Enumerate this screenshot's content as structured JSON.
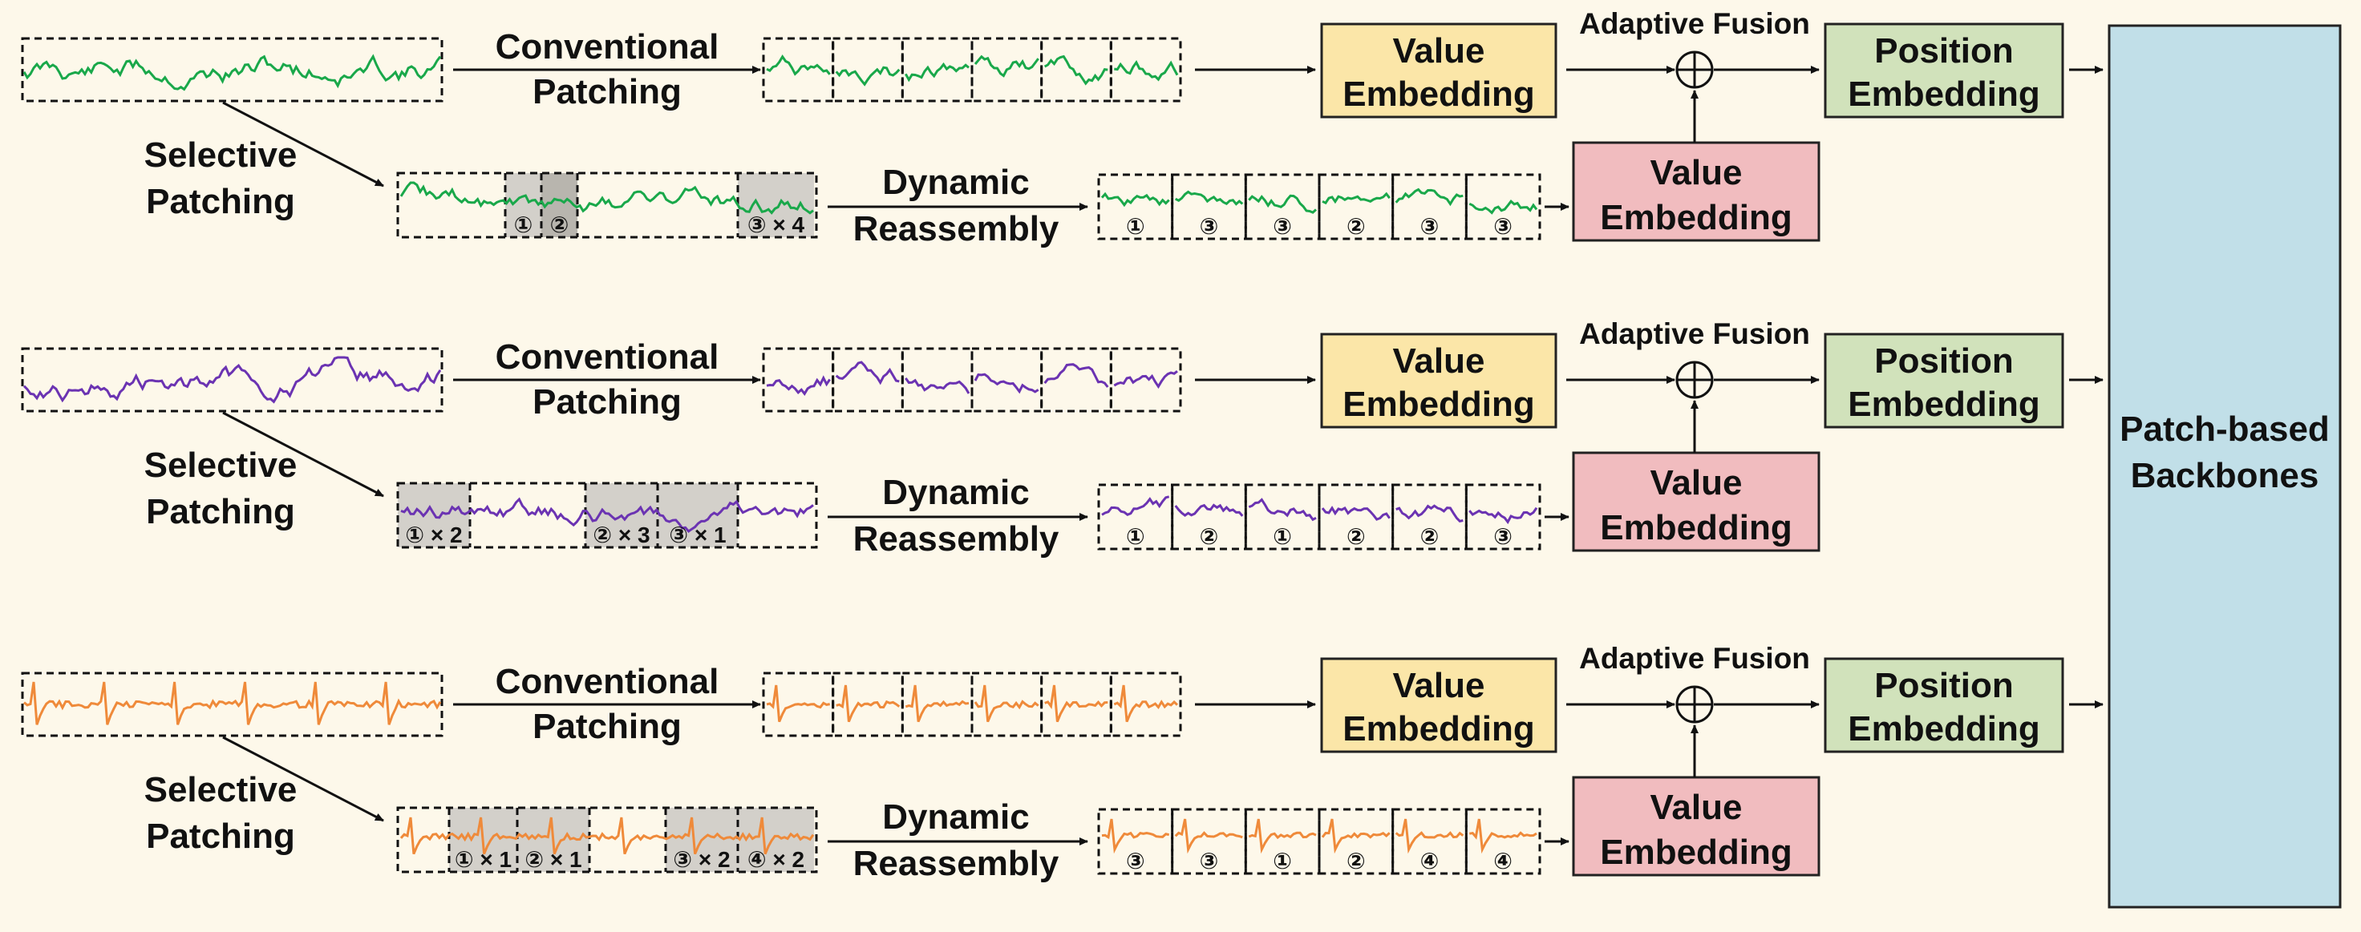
{
  "colors": {
    "background": "#fdf8ea",
    "value_embedding_top": "#fbe6a8",
    "value_embedding_bottom": "#f1bcbf",
    "position_embedding": "#d1e2bb",
    "backbone": "#c1dfe8",
    "selected_patch": "#d3d0ca",
    "selected_patch_dark": "#b8b5ae",
    "series": [
      "#19a84a",
      "#6b33b2",
      "#ef8a3a"
    ]
  },
  "labels": {
    "conventional": [
      "Conventional",
      "Patching"
    ],
    "selective": [
      "Selective",
      "Patching"
    ],
    "dynamic": [
      "Dynamic",
      "Reassembly"
    ],
    "value_embedding": [
      "Value",
      "Embedding"
    ],
    "position_embedding": [
      "Position",
      "Embedding"
    ],
    "adaptive_fusion": "Adaptive Fusion",
    "fusion_symbol": "⊕",
    "backbone": [
      "Patch-based",
      "Backbones"
    ]
  },
  "rows": [
    {
      "selected_marks": [
        "①",
        "②",
        "③ × 4"
      ],
      "reassembled_marks": [
        "①",
        "③",
        "③",
        "②",
        "③",
        "③"
      ]
    },
    {
      "selected_marks": [
        "① × 2",
        "② × 3",
        "③ × 1"
      ],
      "reassembled_marks": [
        "①",
        "②",
        "①",
        "②",
        "②",
        "③"
      ]
    },
    {
      "selected_marks": [
        "① × 1",
        "② × 1",
        "③ × 2",
        "④ × 2"
      ],
      "reassembled_marks": [
        "③",
        "③",
        "①",
        "②",
        "④",
        "④"
      ]
    }
  ]
}
